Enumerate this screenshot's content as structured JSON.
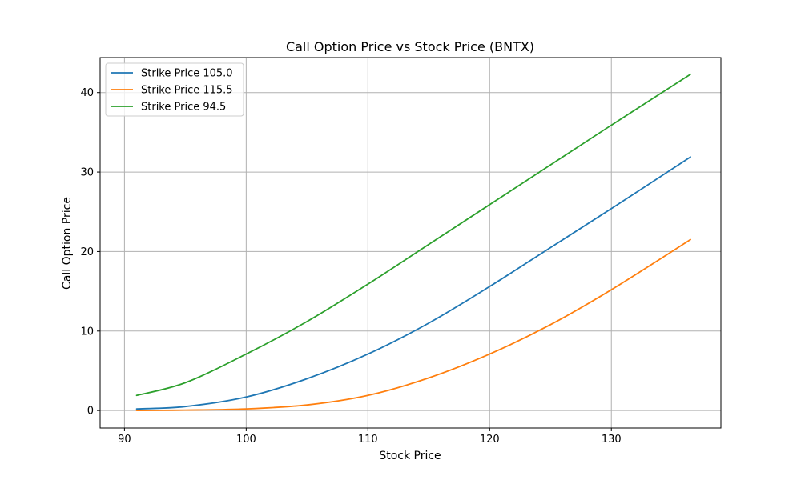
{
  "chart_data": {
    "type": "line",
    "title": "Call Option Price vs Stock Price (BNTX)",
    "xlabel": "Stock Price",
    "ylabel": "Call Option Price",
    "xlim": [
      88,
      139
    ],
    "ylim": [
      -2.2,
      44.4
    ],
    "xticks": [
      90,
      100,
      110,
      120,
      130
    ],
    "yticks": [
      0,
      10,
      20,
      30,
      40
    ],
    "grid": true,
    "legend_position": "top-left",
    "x": [
      91,
      95,
      100,
      105,
      110,
      115,
      120,
      125,
      130,
      136.5
    ],
    "series": [
      {
        "name": "Strike Price 105.0",
        "color": "#1f77b4",
        "values": [
          0.2,
          0.5,
          1.7,
          4.0,
          7.1,
          11.0,
          15.6,
          20.5,
          25.4,
          31.9
        ]
      },
      {
        "name": "Strike Price 115.5",
        "color": "#ff7f0e",
        "values": [
          0.0,
          0.05,
          0.2,
          0.7,
          1.9,
          4.1,
          7.1,
          10.8,
          15.2,
          21.5
        ]
      },
      {
        "name": "Strike Price 94.5",
        "color": "#2ca02c",
        "values": [
          1.9,
          3.5,
          7.1,
          11.2,
          15.9,
          20.9,
          25.9,
          30.9,
          35.9,
          42.3
        ]
      }
    ]
  }
}
